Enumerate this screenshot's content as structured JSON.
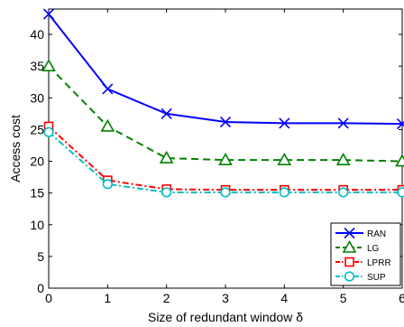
{
  "chart_data": {
    "type": "line",
    "xlabel": "Size of redundant window δ",
    "ylabel": "Access cost",
    "xlim": [
      0,
      6
    ],
    "ylim": [
      0,
      44
    ],
    "xticks": [
      0,
      1,
      2,
      3,
      4,
      5,
      6
    ],
    "yticks": [
      0,
      5,
      10,
      15,
      20,
      25,
      30,
      35,
      40
    ],
    "grid": false,
    "legend_position": "bottom-right",
    "x": [
      0,
      1,
      2,
      3,
      4,
      5,
      6
    ],
    "series": [
      {
        "name": "RAN",
        "values": [
          43.2,
          31.4,
          27.5,
          26.2,
          26.0,
          26.0,
          25.9
        ],
        "color": "#0000ff",
        "marker": "x",
        "dash": "solid"
      },
      {
        "name": "LG",
        "values": [
          35.0,
          25.5,
          20.5,
          20.2,
          20.2,
          20.2,
          20.0
        ],
        "color": "#008000",
        "marker": "triangle",
        "dash": "dashed"
      },
      {
        "name": "LPRR",
        "values": [
          25.5,
          17.0,
          15.6,
          15.5,
          15.5,
          15.5,
          15.5
        ],
        "color": "#ff0000",
        "marker": "square",
        "dash": "dashdot"
      },
      {
        "name": "SUP",
        "values": [
          24.6,
          16.4,
          15.1,
          15.1,
          15.1,
          15.1,
          15.1
        ],
        "color": "#00bfbf",
        "marker": "circle",
        "dash": "dashdot"
      }
    ]
  }
}
